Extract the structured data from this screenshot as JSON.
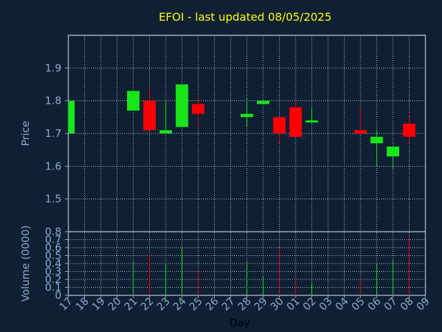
{
  "chart_data": {
    "type": "candlestick",
    "title": "EFOI - last updated 08/05/2025",
    "xlabel": "Day",
    "price_panel": {
      "ylabel": "Price",
      "ylim": [
        1.4,
        2.0
      ],
      "yticks": [
        "1.5",
        "1.6",
        "1.7",
        "1.8",
        "1.9"
      ]
    },
    "volume_panel": {
      "ylabel": "Volume (0000)",
      "ylim": [
        0,
        0.8
      ],
      "yticks": [
        "0",
        "0.1",
        "0.2",
        "0.3",
        "0.4",
        "0.5",
        "0.6",
        "0.7",
        "0.8"
      ]
    },
    "x_ticks": [
      "17",
      "18",
      "19",
      "20",
      "21",
      "22",
      "23",
      "24",
      "25",
      "26",
      "27",
      "28",
      "29",
      "30",
      "01",
      "02",
      "03",
      "04",
      "05",
      "06",
      "07",
      "08",
      "09"
    ],
    "colors": {
      "background": "#0f2035",
      "panel": "#0f2035",
      "grid": "#c0c8d4",
      "up": "#19e619",
      "down": "#ff0000",
      "title": "#ffff00",
      "axis_text": "#8fa9cc",
      "xlabel": "#000000"
    },
    "candles": [
      {
        "day": "17",
        "open": 1.7,
        "high": 1.8,
        "low": 1.7,
        "close": 1.8,
        "volume": 0.0
      },
      {
        "day": "21",
        "open": 1.77,
        "high": 1.83,
        "low": 1.77,
        "close": 1.83,
        "volume": 0.42
      },
      {
        "day": "22",
        "open": 1.8,
        "high": 1.84,
        "low": 1.71,
        "close": 1.71,
        "volume": 0.53
      },
      {
        "day": "23",
        "open": 1.7,
        "high": 1.8,
        "low": 1.7,
        "close": 1.71,
        "volume": 0.4
      },
      {
        "day": "24",
        "open": 1.72,
        "high": 1.85,
        "low": 1.72,
        "close": 1.85,
        "volume": 0.61
      },
      {
        "day": "25",
        "open": 1.79,
        "high": 1.82,
        "low": 1.72,
        "close": 1.76,
        "volume": 0.32
      },
      {
        "day": "28",
        "open": 1.75,
        "high": 1.81,
        "low": 1.72,
        "close": 1.76,
        "volume": 0.42
      },
      {
        "day": "29",
        "open": 1.79,
        "high": 1.8,
        "low": 1.79,
        "close": 1.8,
        "volume": 0.24
      },
      {
        "day": "30",
        "open": 1.75,
        "high": 1.75,
        "low": 1.67,
        "close": 1.7,
        "volume": 0.6
      },
      {
        "day": "01",
        "open": 1.78,
        "high": 1.8,
        "low": 1.69,
        "close": 1.69,
        "volume": 0.19
      },
      {
        "day": "02",
        "open": 1.74,
        "high": 1.78,
        "low": 1.73,
        "close": 1.74,
        "volume": 0.15
      },
      {
        "day": "05",
        "open": 1.71,
        "high": 1.78,
        "low": 1.7,
        "close": 1.7,
        "volume": 0.2
      },
      {
        "day": "06",
        "open": 1.67,
        "high": 1.71,
        "low": 1.6,
        "close": 1.69,
        "volume": 0.39
      },
      {
        "day": "07",
        "open": 1.63,
        "high": 1.66,
        "low": 1.59,
        "close": 1.66,
        "volume": 0.44
      },
      {
        "day": "08",
        "open": 1.73,
        "high": 1.76,
        "low": 1.67,
        "close": 1.69,
        "volume": 0.76
      }
    ]
  }
}
